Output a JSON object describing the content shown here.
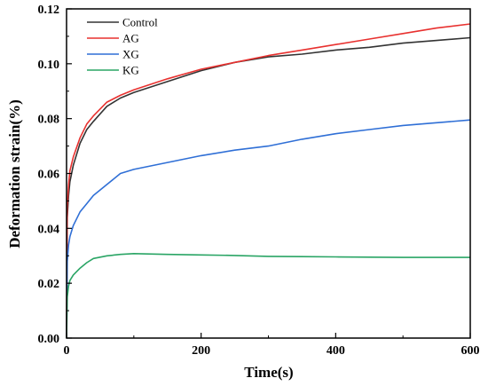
{
  "chart_data": {
    "type": "line",
    "title": "",
    "xlabel": "Time(s)",
    "ylabel": "Deformation strain(%)",
    "xlim": [
      0,
      600
    ],
    "ylim": [
      0,
      0.12
    ],
    "x_ticks": [
      "0",
      "200",
      "400",
      "600"
    ],
    "y_ticks": [
      "0.00",
      "0.02",
      "0.04",
      "0.06",
      "0.08",
      "0.10",
      "0.12"
    ],
    "grid": false,
    "legend_position": "top-left",
    "x": [
      0,
      1,
      3,
      5,
      10,
      20,
      30,
      40,
      60,
      80,
      100,
      150,
      200,
      250,
      300,
      350,
      400,
      450,
      500,
      550,
      600
    ],
    "series": [
      {
        "name": "Control",
        "color": "#333333",
        "values": [
          0.0,
          0.044,
          0.052,
          0.057,
          0.063,
          0.071,
          0.076,
          0.079,
          0.0845,
          0.0875,
          0.0895,
          0.0935,
          0.0975,
          0.1005,
          0.1025,
          0.1035,
          0.105,
          0.106,
          0.1075,
          0.1085,
          0.1095
        ]
      },
      {
        "name": "AG",
        "color": "#e8312f",
        "values": [
          0.0,
          0.048,
          0.056,
          0.061,
          0.066,
          0.073,
          0.078,
          0.081,
          0.086,
          0.0885,
          0.0905,
          0.0945,
          0.098,
          0.1005,
          0.103,
          0.105,
          0.107,
          0.109,
          0.111,
          0.113,
          0.1145
        ]
      },
      {
        "name": "XG",
        "color": "#2f6fd6",
        "values": [
          0.0,
          0.028,
          0.034,
          0.037,
          0.041,
          0.046,
          0.049,
          0.052,
          0.056,
          0.06,
          0.0615,
          0.064,
          0.0665,
          0.0685,
          0.07,
          0.0725,
          0.0745,
          0.076,
          0.0775,
          0.0785,
          0.0795
        ]
      },
      {
        "name": "KG",
        "color": "#2aa565",
        "values": [
          0.0,
          0.015,
          0.019,
          0.021,
          0.023,
          0.0255,
          0.0275,
          0.029,
          0.03,
          0.0305,
          0.0308,
          0.0305,
          0.0303,
          0.0301,
          0.0298,
          0.0297,
          0.0296,
          0.0295,
          0.0294,
          0.0294,
          0.0294
        ]
      }
    ]
  }
}
